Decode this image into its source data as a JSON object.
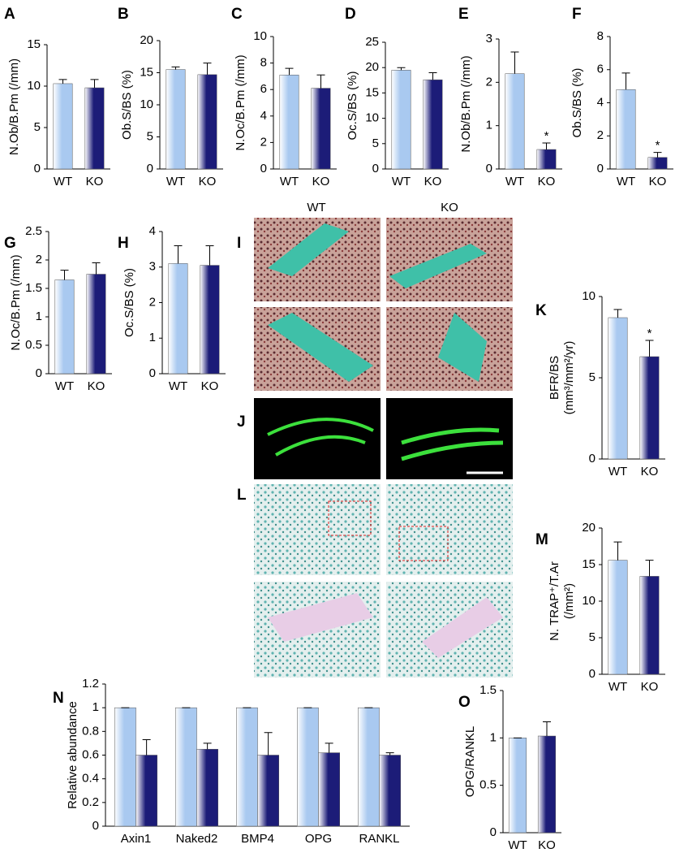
{
  "chart_data": [
    {
      "panel": "A",
      "type": "bar",
      "ylabel": "N.Ob/B.Pm (/mm)",
      "categories": [
        "WT",
        "KO"
      ],
      "values": [
        10.3,
        9.8
      ],
      "errors": [
        0.5,
        1.0
      ],
      "colors": [
        "#a9c9f0",
        "#1c1c78"
      ],
      "ylim": [
        0,
        15
      ],
      "yticks": [
        0,
        5,
        10,
        15
      ]
    },
    {
      "panel": "B",
      "type": "bar",
      "ylabel": "Ob.S/BS (%)",
      "categories": [
        "WT",
        "KO"
      ],
      "values": [
        15.5,
        14.7
      ],
      "errors": [
        0.4,
        1.8
      ],
      "colors": [
        "#a9c9f0",
        "#1c1c78"
      ],
      "ylim": [
        0,
        20
      ],
      "yticks": [
        0,
        5,
        10,
        15,
        20
      ]
    },
    {
      "panel": "C",
      "type": "bar",
      "ylabel": "N.Oc/B.Pm (/mm)",
      "categories": [
        "WT",
        "KO"
      ],
      "values": [
        7.1,
        6.1
      ],
      "errors": [
        0.5,
        1.0
      ],
      "colors": [
        "#a9c9f0",
        "#1c1c78"
      ],
      "ylim": [
        0,
        10
      ],
      "yticks": [
        0,
        2,
        4,
        6,
        8,
        10
      ]
    },
    {
      "panel": "D",
      "type": "bar",
      "ylabel": "Oc.S/BS (%)",
      "categories": [
        "WT",
        "KO"
      ],
      "values": [
        19.5,
        17.6
      ],
      "errors": [
        0.5,
        1.4
      ],
      "colors": [
        "#a9c9f0",
        "#1c1c78"
      ],
      "ylim": [
        0,
        25
      ],
      "yticks": [
        0,
        5,
        10,
        15,
        20,
        25
      ]
    },
    {
      "panel": "E",
      "type": "bar",
      "ylabel": "N.Ob/B.Pm (/mm)",
      "categories": [
        "WT",
        "KO"
      ],
      "values": [
        2.2,
        0.45
      ],
      "errors": [
        0.5,
        0.15
      ],
      "significance": [
        null,
        "*"
      ],
      "colors": [
        "#a9c9f0",
        "#1c1c78"
      ],
      "ylim": [
        0,
        3
      ],
      "yticks": [
        0,
        1,
        2,
        3
      ]
    },
    {
      "panel": "F",
      "type": "bar",
      "ylabel": "Ob.S/BS (%)",
      "categories": [
        "WT",
        "KO"
      ],
      "values": [
        4.8,
        0.7
      ],
      "errors": [
        1.0,
        0.3
      ],
      "significance": [
        null,
        "*"
      ],
      "colors": [
        "#a9c9f0",
        "#1c1c78"
      ],
      "ylim": [
        0,
        8
      ],
      "yticks": [
        0,
        2,
        4,
        6,
        8
      ]
    },
    {
      "panel": "G",
      "type": "bar",
      "ylabel": "N.Oc/B.Pm (/mm)",
      "categories": [
        "WT",
        "KO"
      ],
      "values": [
        1.65,
        1.75
      ],
      "errors": [
        0.17,
        0.2
      ],
      "colors": [
        "#a9c9f0",
        "#1c1c78"
      ],
      "ylim": [
        0,
        2.5
      ],
      "yticks": [
        0,
        0.5,
        1,
        1.5,
        2,
        2.5
      ]
    },
    {
      "panel": "H",
      "type": "bar",
      "ylabel": "Oc.S/BS (%)",
      "categories": [
        "WT",
        "KO"
      ],
      "values": [
        3.1,
        3.05
      ],
      "errors": [
        0.5,
        0.55
      ],
      "colors": [
        "#a9c9f0",
        "#1c1c78"
      ],
      "ylim": [
        0,
        4
      ],
      "yticks": [
        0,
        1,
        2,
        3,
        4
      ]
    },
    {
      "panel": "K",
      "type": "bar",
      "ylabel": [
        "BFR/BS",
        "(mm³/mm²/yr)"
      ],
      "categories": [
        "WT",
        "KO"
      ],
      "values": [
        8.7,
        6.3
      ],
      "errors": [
        0.5,
        1.0
      ],
      "significance": [
        null,
        "*"
      ],
      "colors": [
        "#a9c9f0",
        "#1c1c78"
      ],
      "ylim": [
        0,
        10
      ],
      "yticks": [
        0,
        5,
        10
      ]
    },
    {
      "panel": "M",
      "type": "bar",
      "ylabel": [
        "N. TRAP⁺/T.Ar",
        "(/mm²)"
      ],
      "categories": [
        "WT",
        "KO"
      ],
      "values": [
        15.6,
        13.4
      ],
      "errors": [
        2.5,
        2.2
      ],
      "colors": [
        "#a9c9f0",
        "#1c1c78"
      ],
      "ylim": [
        0,
        20
      ],
      "yticks": [
        0,
        5,
        10,
        15,
        20
      ]
    },
    {
      "panel": "N",
      "type": "bar",
      "ylabel": "Relative abundance",
      "categories": [
        "Axin1",
        "Naked2",
        "BMP4",
        "OPG",
        "RANKL"
      ],
      "series": [
        {
          "color": "#a9c9f0",
          "values": [
            1,
            1,
            1,
            1,
            1
          ],
          "errors": [
            0,
            0,
            0,
            0,
            0
          ]
        },
        {
          "color": "#1c1c78",
          "values": [
            0.6,
            0.65,
            0.6,
            0.62,
            0.6
          ],
          "errors": [
            0.13,
            0.05,
            0.19,
            0.08,
            0.02
          ]
        }
      ],
      "ylim": [
        0,
        1.2
      ],
      "yticks": [
        0,
        0.2,
        0.4,
        0.6,
        0.8,
        1,
        1.2
      ]
    },
    {
      "panel": "O",
      "type": "bar",
      "ylabel": "OPG/RANKL",
      "categories": [
        "WT",
        "KO"
      ],
      "values": [
        1,
        1.02
      ],
      "errors": [
        0,
        0.15
      ],
      "colors": [
        "#a9c9f0",
        "#1c1c78"
      ],
      "ylim": [
        0,
        1.5
      ],
      "yticks": [
        0,
        0.5,
        1,
        1.5
      ]
    }
  ],
  "images": {
    "columns": [
      "WT",
      "KO"
    ],
    "panels": [
      "I",
      "J",
      "L"
    ]
  }
}
